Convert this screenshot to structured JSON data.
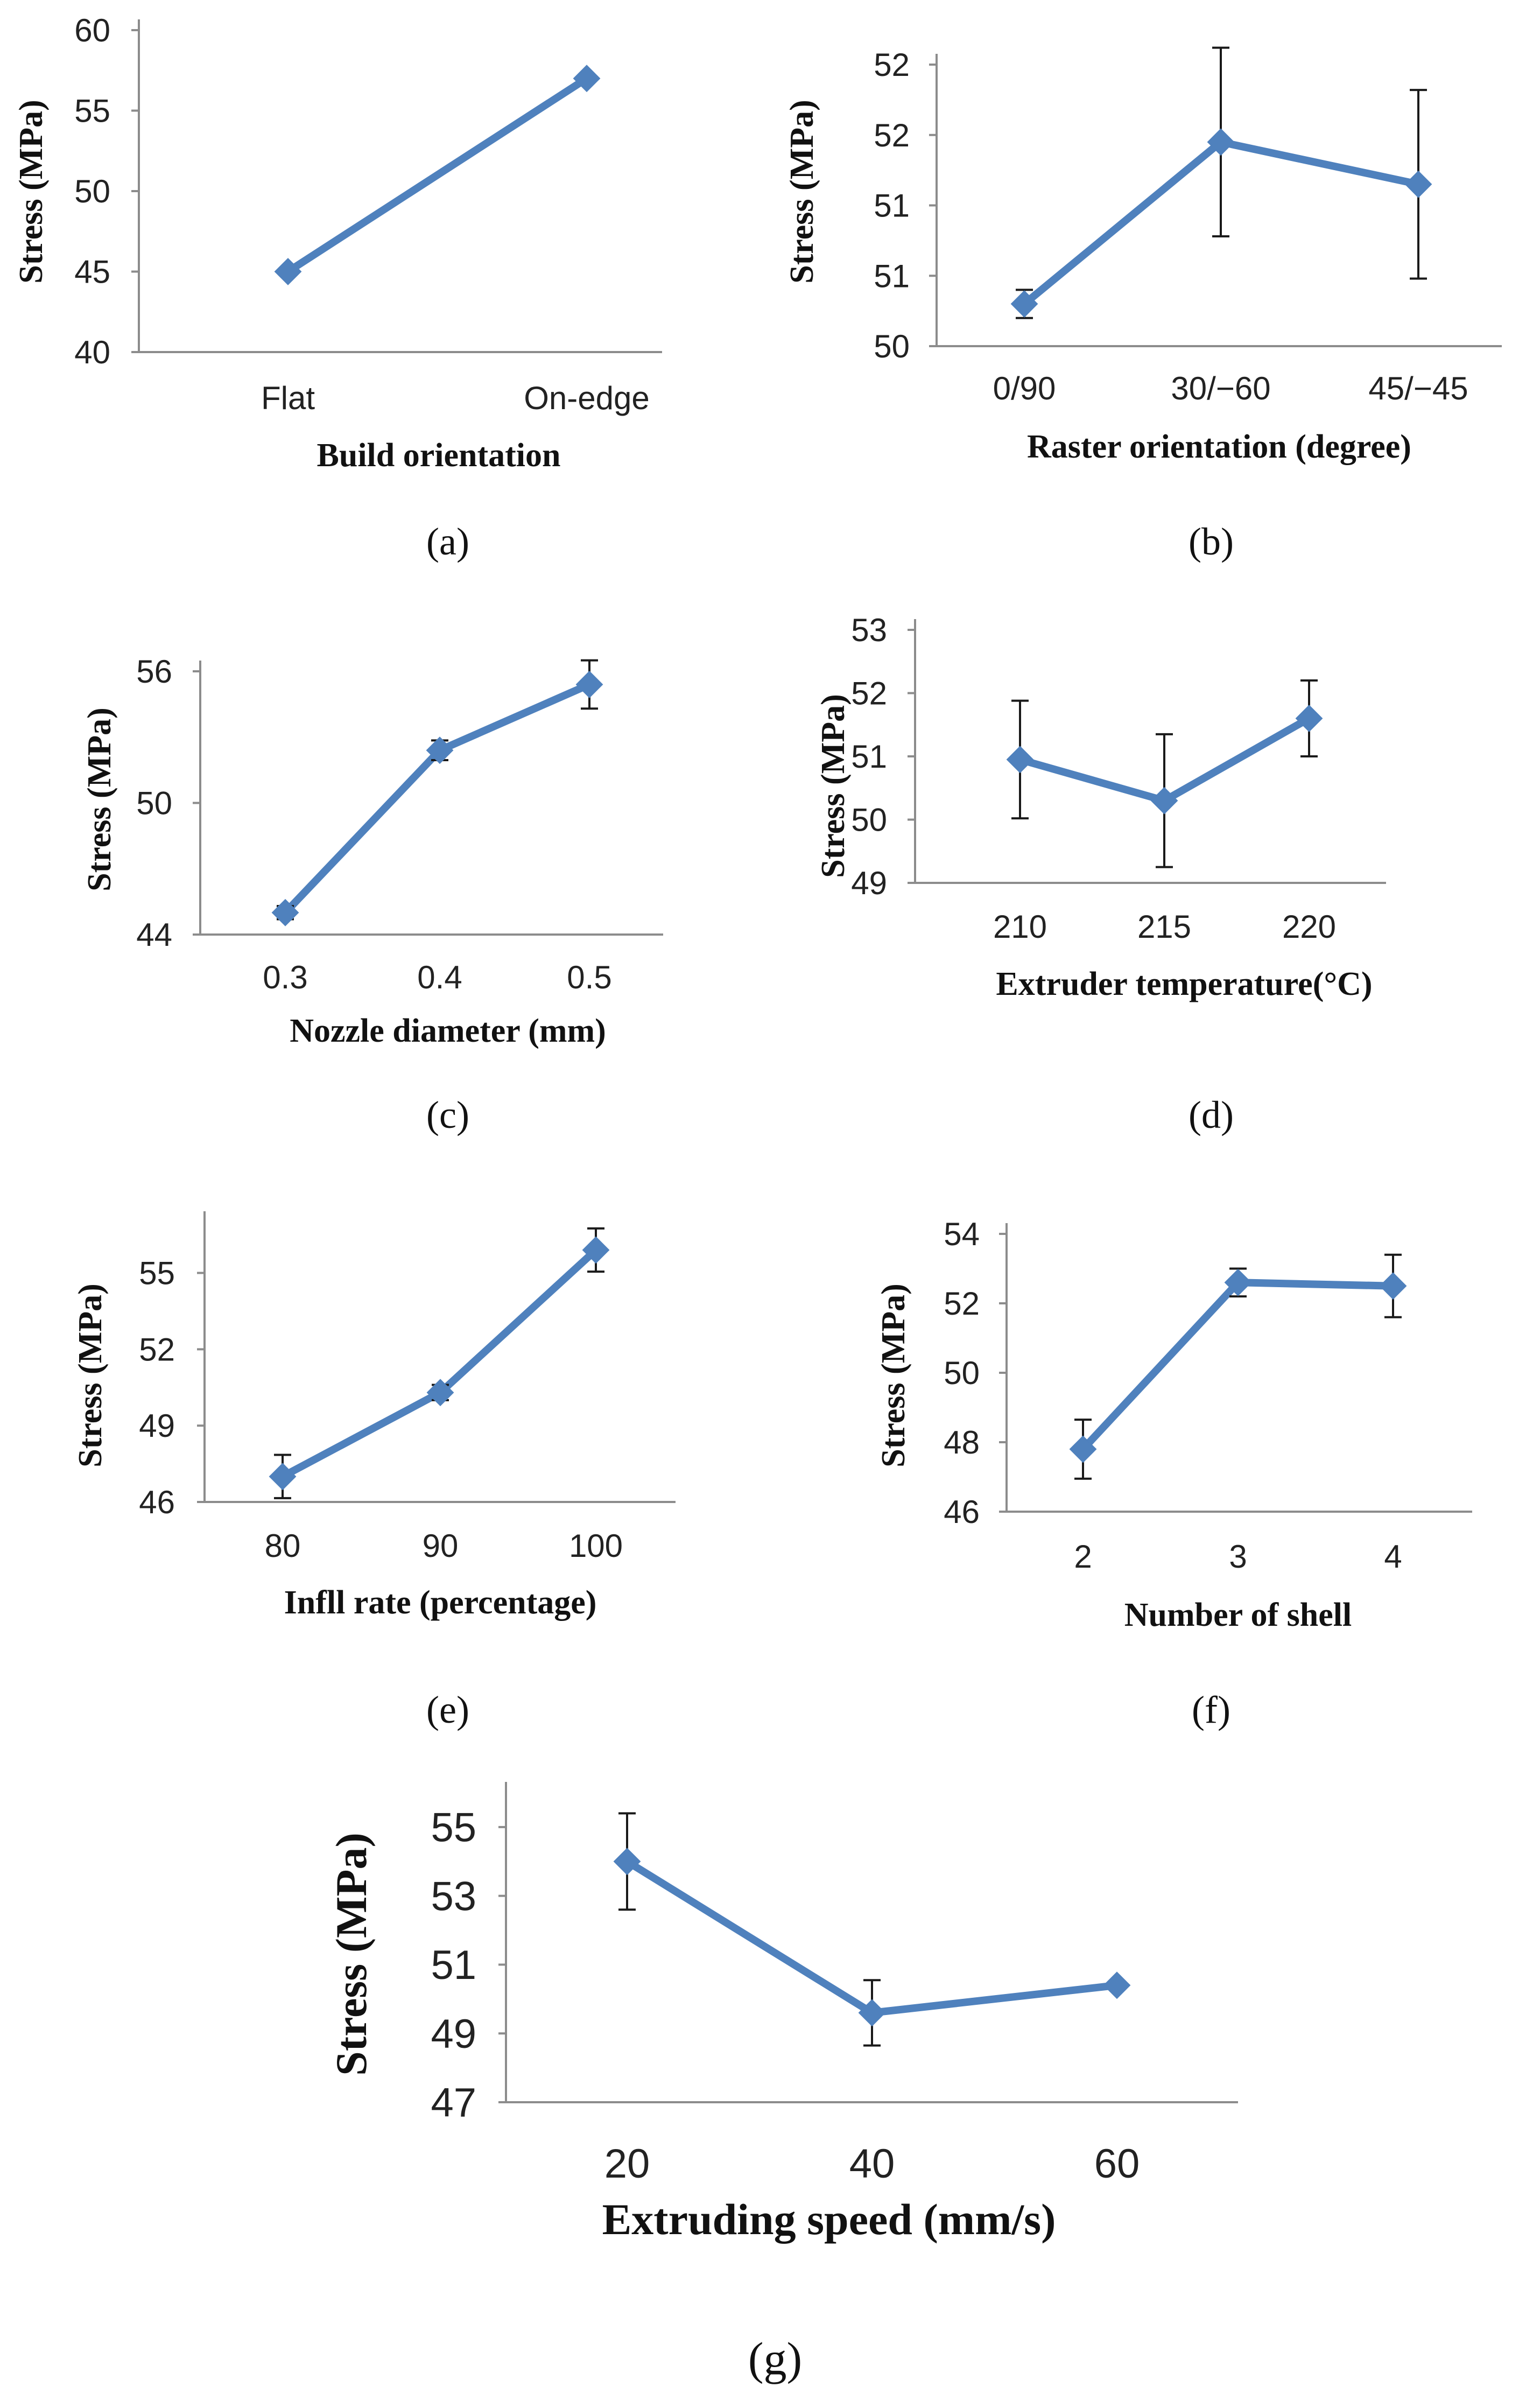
{
  "colors": {
    "series": "#4f81bd",
    "axis": "#8c8c8c",
    "error": "#1a1a1a",
    "text": "#111111"
  },
  "marker": "diamond",
  "chart_data": [
    {
      "id": "a",
      "caption": "(a)",
      "type": "line",
      "categories": [
        "Flat",
        "On-edge"
      ],
      "values": [
        45,
        57
      ],
      "errors": [
        0,
        0
      ],
      "xlabel": "Build orientation",
      "ylabel": "Stress (MPa)",
      "ylim": [
        40,
        60
      ],
      "yticks": [
        "40",
        "45",
        "50",
        "55",
        "60"
      ],
      "tick_values": [
        40,
        45,
        50,
        55,
        60
      ]
    },
    {
      "id": "b",
      "caption": "(b)",
      "type": "line",
      "categories": [
        "0/90",
        "30/−60",
        "45/−45"
      ],
      "values": [
        50.3,
        51.45,
        51.15
      ],
      "errors": [
        0.1,
        0.67,
        0.67
      ],
      "xlabel": "Raster orientation (degree)",
      "ylabel": "Stress (MPa)",
      "ylim": [
        50,
        52
      ],
      "yticks": [
        "50",
        "51",
        "51",
        "52",
        "52"
      ],
      "tick_values": [
        50,
        50.5,
        51,
        51.5,
        52
      ]
    },
    {
      "id": "c",
      "caption": "(c)",
      "type": "line",
      "categories": [
        "0.3",
        "0.4",
        "0.5"
      ],
      "values": [
        45.0,
        52.4,
        55.4
      ],
      "errors": [
        0.3,
        0.45,
        1.1
      ],
      "xlabel": "Nozzle diameter (mm)",
      "ylabel": "Stress (MPa)",
      "ylim": [
        44,
        56
      ],
      "yticks": [
        "44",
        "50",
        "56"
      ],
      "tick_values": [
        44,
        50,
        56
      ]
    },
    {
      "id": "d",
      "caption": "(d)",
      "type": "line",
      "categories": [
        "210",
        "215",
        "220"
      ],
      "values": [
        50.95,
        50.3,
        51.6
      ],
      "errors": [
        0.93,
        1.05,
        0.6
      ],
      "xlabel": "Extruder temperature(°C)",
      "ylabel": "Stress (MPa)",
      "ylim": [
        49,
        53
      ],
      "yticks": [
        "49",
        "50",
        "51",
        "52",
        "53"
      ],
      "tick_values": [
        49,
        50,
        51,
        52,
        53
      ]
    },
    {
      "id": "e",
      "caption": "(e)",
      "type": "line",
      "categories": [
        "80",
        "90",
        "100"
      ],
      "values": [
        47.0,
        50.3,
        55.9
      ],
      "errors": [
        0.85,
        0.3,
        0.85
      ],
      "xlabel": "Infll rate (percentage)",
      "ylabel": "Stress (MPa)",
      "ylim": [
        46,
        57
      ],
      "yticks": [
        "46",
        "49",
        "52",
        "55"
      ],
      "tick_values": [
        46,
        49,
        52,
        55
      ]
    },
    {
      "id": "f",
      "caption": "(f)",
      "type": "line",
      "categories": [
        "2",
        "3",
        "4"
      ],
      "values": [
        47.8,
        52.6,
        52.5
      ],
      "errors": [
        0.85,
        0.4,
        0.9
      ],
      "xlabel": "Number of shell",
      "ylabel": "Stress (MPa)",
      "ylim": [
        46,
        54
      ],
      "yticks": [
        "46",
        "48",
        "50",
        "52",
        "54"
      ],
      "tick_values": [
        46,
        48,
        50,
        52,
        54
      ]
    },
    {
      "id": "g",
      "caption": "(g)",
      "type": "line",
      "categories": [
        "20",
        "40",
        "60"
      ],
      "values": [
        54.0,
        49.6,
        50.4
      ],
      "errors": [
        1.4,
        0.95,
        0.1
      ],
      "xlabel": "Extruding speed (mm/s)",
      "ylabel": "Stress (MPa)",
      "ylim": [
        47,
        56
      ],
      "yticks": [
        "47",
        "49",
        "51",
        "53",
        "55"
      ],
      "tick_values": [
        47,
        49,
        51,
        53,
        55
      ]
    }
  ]
}
